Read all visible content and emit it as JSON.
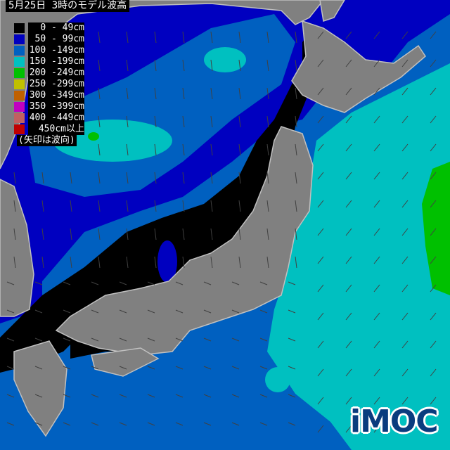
{
  "title": "5月25日 3時のモデル波高",
  "legend": {
    "items": [
      {
        "label": "0 - 49cm",
        "color": "#000000"
      },
      {
        "label": "50 - 99cm",
        "color": "#0000c0"
      },
      {
        "label": "100 -149cm",
        "color": "#0060c0"
      },
      {
        "label": "150 -199cm",
        "color": "#00c0c0"
      },
      {
        "label": "200 -249cm",
        "color": "#00c000"
      },
      {
        "label": "250 -299cm",
        "color": "#c0c000"
      },
      {
        "label": "300 -349cm",
        "color": "#c06000"
      },
      {
        "label": "350 -399cm",
        "color": "#c000c0"
      },
      {
        "label": "400 -449cm",
        "color": "#c06060"
      },
      {
        "label": "450cm以上",
        "color": "#c00000"
      }
    ],
    "note": "(矢印は波向)"
  },
  "colors": {
    "land": "#808080",
    "coast": "#c0c0c0",
    "arrow": "#404040"
  },
  "logo": "iMOC"
}
